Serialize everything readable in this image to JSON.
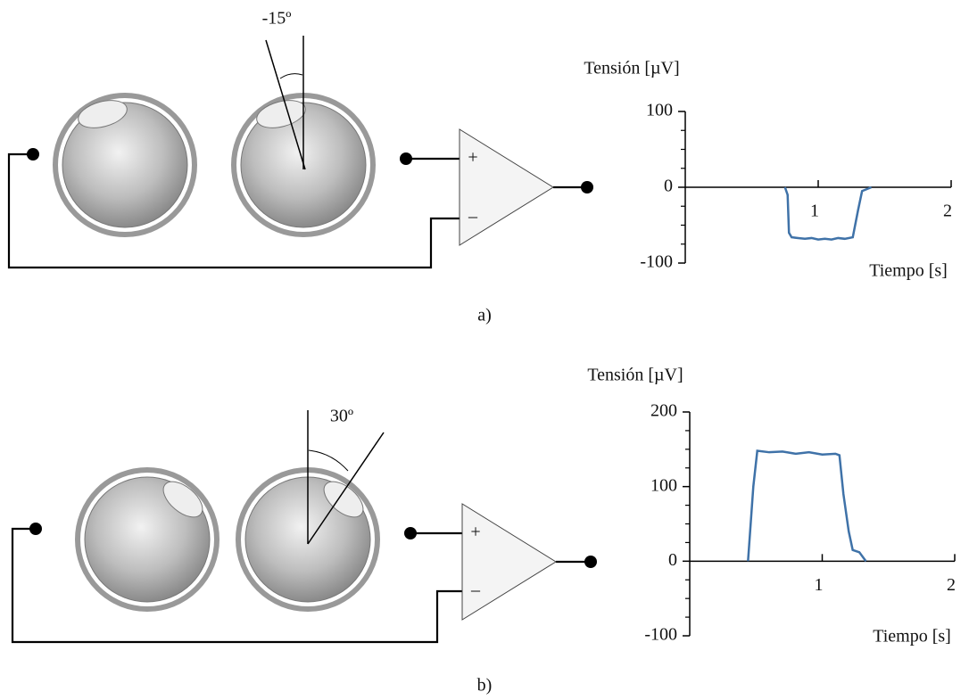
{
  "panels": [
    {
      "angle": "-15º",
      "plus": "+",
      "minus": "–",
      "caption": "a)"
    },
    {
      "angle": "30º",
      "plus": "+",
      "minus": "–",
      "caption": "b)"
    }
  ],
  "chart_data": [
    {
      "type": "line",
      "ylabel": "Tensión [µV]",
      "xlabel": "Tiempo [s]",
      "xlim": [
        0,
        2
      ],
      "xticks": [
        1,
        2
      ],
      "ylim": [
        -100,
        100
      ],
      "yticks": [
        -100,
        0,
        100
      ],
      "yminorticks": [
        -75,
        -50,
        -25,
        25,
        50,
        75
      ],
      "series": [
        {
          "color": "#3f72a8",
          "x": [
            0.75,
            0.77,
            0.78,
            0.8,
            0.85,
            0.9,
            0.95,
            1.0,
            1.05,
            1.1,
            1.15,
            1.2,
            1.26,
            1.3,
            1.33,
            1.4
          ],
          "values": [
            0,
            -10,
            -60,
            -66,
            -67,
            -68,
            -67,
            -69,
            -68,
            -69,
            -67,
            -68,
            -66,
            -30,
            -5,
            0
          ]
        }
      ]
    },
    {
      "type": "line",
      "ylabel": "Tensión [µV]",
      "xlabel": "Tiempo [s]",
      "xlim": [
        0,
        2
      ],
      "xticks": [
        1,
        2
      ],
      "ylim": [
        -100,
        200
      ],
      "yticks": [
        -100,
        0,
        100,
        200
      ],
      "yminorticks": [
        -75,
        -50,
        -25,
        25,
        50,
        75,
        125,
        150,
        175
      ],
      "series": [
        {
          "color": "#3f72a8",
          "x": [
            0.44,
            0.48,
            0.51,
            0.6,
            0.7,
            0.8,
            0.9,
            1.0,
            1.1,
            1.13,
            1.16,
            1.2,
            1.23,
            1.28,
            1.33
          ],
          "values": [
            0,
            100,
            148,
            146,
            147,
            144,
            146,
            143,
            144,
            142,
            90,
            40,
            15,
            12,
            0
          ]
        }
      ]
    }
  ]
}
